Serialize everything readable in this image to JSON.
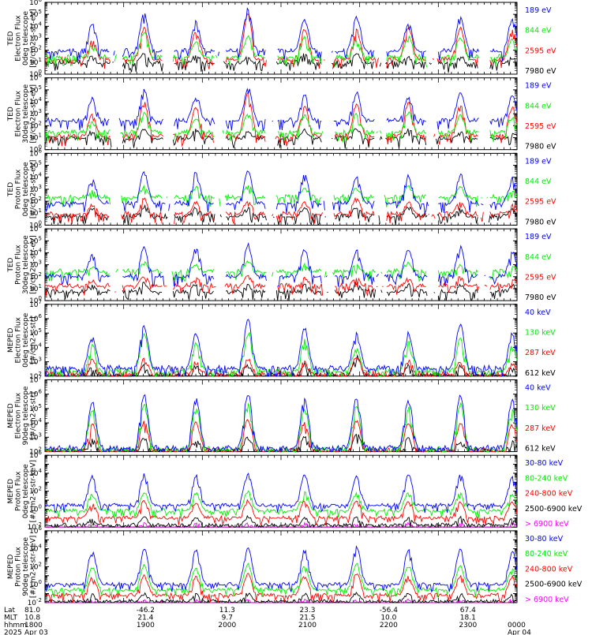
{
  "chart_data": [
    {
      "type": "line",
      "ylabel": [
        "TED",
        "Electron Flux",
        "0deg telescope",
        "[#/cm2-s-str-eV]"
      ],
      "y_log": true,
      "ylim_exp": [
        0,
        6
      ],
      "major_exp": [
        0,
        1,
        2,
        3,
        4,
        5,
        6
      ],
      "series": [
        {
          "name": "7980 eV",
          "color": "#000000",
          "base_exp": 0.9,
          "peaks_exp": [
            1.6,
            1.8,
            1.8,
            1.5,
            1.9,
            1.8,
            1.7,
            1.6,
            1.5
          ]
        },
        {
          "name": "2595 eV",
          "color": "#ff0000",
          "base_exp": 1.2,
          "peaks_exp": [
            3.0,
            4.0,
            3.7,
            5.2,
            4.0,
            3.8,
            4.0,
            4.0,
            3.8
          ]
        },
        {
          "name": "844 eV",
          "color": "#00ee00",
          "base_exp": 1.4,
          "peaks_exp": [
            2.5,
            3.6,
            2.8,
            3.3,
            3.2,
            3.0,
            3.3,
            3.2,
            3.0
          ]
        },
        {
          "name": "189 eV",
          "color": "#0000ff",
          "base_exp": 1.9,
          "peaks_exp": [
            4.3,
            5.2,
            4.5,
            5.6,
            4.8,
            5.0,
            4.4,
            4.9,
            4.7
          ]
        }
      ]
    },
    {
      "type": "line",
      "ylabel": [
        "TED",
        "Electron Flux",
        "30deg telescope",
        "[#/cm2-s-str-eV]"
      ],
      "y_log": true,
      "ylim_exp": [
        0,
        6
      ],
      "major_exp": [
        0,
        1,
        2,
        3,
        4,
        5,
        6
      ],
      "series": [
        {
          "name": "7980 eV",
          "color": "#000000",
          "base_exp": 0.9,
          "peaks_exp": [
            1.7,
            1.9,
            1.8,
            1.6,
            1.8,
            1.9,
            1.8,
            1.6,
            1.5
          ]
        },
        {
          "name": "2595 eV",
          "color": "#ff0000",
          "base_exp": 1.1,
          "peaks_exp": [
            3.0,
            4.1,
            3.6,
            4.8,
            3.8,
            3.9,
            4.0,
            3.9,
            3.7
          ]
        },
        {
          "name": "844 eV",
          "color": "#00ee00",
          "base_exp": 1.4,
          "peaks_exp": [
            2.4,
            3.4,
            2.7,
            3.1,
            3.0,
            3.1,
            3.2,
            3.0,
            2.9
          ]
        },
        {
          "name": "189 eV",
          "color": "#0000ff",
          "base_exp": 2.4,
          "peaks_exp": [
            4.4,
            5.1,
            4.6,
            5.3,
            4.7,
            4.9,
            4.5,
            4.8,
            4.6
          ]
        }
      ]
    },
    {
      "type": "line",
      "ylabel": [
        "TED",
        "Proton Flux",
        "0deg telescope",
        "[#/cm2-s-str-eV]"
      ],
      "y_log": true,
      "ylim_exp": [
        0,
        6
      ],
      "major_exp": [
        0,
        1,
        2,
        3,
        4,
        5,
        6
      ],
      "series": [
        {
          "name": "7980 eV",
          "color": "#000000",
          "base_exp": 0.7,
          "peaks_exp": [
            1.5,
            1.7,
            1.6,
            1.5,
            1.6,
            1.7,
            1.6,
            1.5,
            1.4
          ]
        },
        {
          "name": "2595 eV",
          "color": "#ff0000",
          "base_exp": 0.9,
          "peaks_exp": [
            1.8,
            2.3,
            2.0,
            2.2,
            2.1,
            2.4,
            2.0,
            2.1,
            1.9
          ]
        },
        {
          "name": "844 eV",
          "color": "#00ee00",
          "base_exp": 2.3,
          "peaks_exp": [
            3.0,
            3.4,
            3.3,
            3.5,
            3.3,
            3.2,
            3.4,
            3.3,
            3.1
          ]
        },
        {
          "name": "189 eV",
          "color": "#0000ff",
          "base_exp": 1.8,
          "peaks_exp": [
            4.0,
            4.5,
            4.6,
            4.7,
            4.4,
            4.2,
            4.3,
            4.4,
            4.1
          ]
        }
      ]
    },
    {
      "type": "line",
      "ylabel": [
        "TED",
        "Proton Flux",
        "30deg telescope",
        "[#/cm2-s-str-eV]"
      ],
      "y_log": true,
      "ylim_exp": [
        0,
        6
      ],
      "major_exp": [
        0,
        1,
        2,
        3,
        4,
        5,
        6
      ],
      "series": [
        {
          "name": "7980 eV",
          "color": "#000000",
          "base_exp": 0.7,
          "peaks_exp": [
            1.4,
            1.6,
            1.5,
            1.4,
            1.5,
            1.6,
            1.5,
            1.4,
            1.4
          ]
        },
        {
          "name": "2595 eV",
          "color": "#ff0000",
          "base_exp": 1.2,
          "peaks_exp": [
            1.8,
            2.1,
            2.0,
            2.2,
            2.0,
            2.1,
            2.0,
            2.1,
            1.9
          ]
        },
        {
          "name": "844 eV",
          "color": "#00ee00",
          "base_exp": 2.4,
          "peaks_exp": [
            3.0,
            3.3,
            3.2,
            3.4,
            3.2,
            3.1,
            3.3,
            3.2,
            3.0
          ]
        },
        {
          "name": "189 eV",
          "color": "#0000ff",
          "base_exp": 2.0,
          "peaks_exp": [
            4.0,
            4.6,
            4.5,
            4.8,
            4.4,
            4.3,
            4.4,
            4.6,
            4.2
          ]
        }
      ]
    },
    {
      "type": "line",
      "ylabel": [
        "MEPED",
        "Electron Flux",
        "0deg telescope",
        "[#/cm2-s-str]"
      ],
      "y_log": true,
      "ylim_exp": [
        2,
        7
      ],
      "major_exp": [
        2,
        3,
        4,
        5,
        6,
        7
      ],
      "series": [
        {
          "name": "612 keV",
          "color": "#000000",
          "base_exp": 2.0,
          "peaks_exp": [
            2.7,
            2.9,
            2.8,
            2.9,
            3.0,
            3.5,
            2.9,
            2.8,
            2.7
          ]
        },
        {
          "name": "287 keV",
          "color": "#ff0000",
          "base_exp": 2.1,
          "peaks_exp": [
            3.2,
            3.3,
            3.1,
            3.3,
            3.2,
            3.5,
            3.2,
            3.1,
            3.0
          ]
        },
        {
          "name": "130 keV",
          "color": "#00ee00",
          "base_exp": 2.3,
          "peaks_exp": [
            4.3,
            5.0,
            4.5,
            5.3,
            4.6,
            4.2,
            4.5,
            4.8,
            4.2
          ]
        },
        {
          "name": "40 keV",
          "color": "#0000ff",
          "base_exp": 2.5,
          "peaks_exp": [
            5.0,
            5.6,
            5.1,
            6.1,
            5.5,
            5.2,
            5.1,
            5.8,
            5.2
          ]
        }
      ]
    },
    {
      "type": "line",
      "ylabel": [
        "MEPED",
        "Electron Flux",
        "90deg telescope",
        "[#/cm2-s-str]"
      ],
      "y_log": true,
      "ylim_exp": [
        2,
        7
      ],
      "major_exp": [
        2,
        3,
        4,
        5,
        6,
        7
      ],
      "series": [
        {
          "name": "612 keV",
          "color": "#000000",
          "base_exp": 2.0,
          "peaks_exp": [
            2.9,
            3.0,
            3.0,
            3.1,
            3.1,
            3.5,
            3.0,
            2.9,
            2.8
          ]
        },
        {
          "name": "287 keV",
          "color": "#ff0000",
          "base_exp": 2.0,
          "peaks_exp": [
            4.1,
            4.3,
            4.2,
            4.4,
            4.2,
            4.3,
            4.2,
            4.1,
            4.0
          ]
        },
        {
          "name": "130 keV",
          "color": "#00ee00",
          "base_exp": 2.1,
          "peaks_exp": [
            5.0,
            5.4,
            5.2,
            5.5,
            5.2,
            5.3,
            5.2,
            5.4,
            5.0
          ]
        },
        {
          "name": "40 keV",
          "color": "#0000ff",
          "base_exp": 2.2,
          "peaks_exp": [
            5.6,
            6.1,
            5.9,
            6.2,
            5.8,
            5.9,
            5.8,
            6.0,
            5.7
          ]
        }
      ]
    },
    {
      "type": "line",
      "ylabel": [
        "MEPED",
        "Proton Flux",
        "0deg telescope",
        "[#/cm2-s-str-keV]"
      ],
      "y_log": true,
      "ylim_exp": [
        -2,
        6
      ],
      "major_exp": [
        -2,
        0,
        2,
        4,
        6
      ],
      "series": [
        {
          "name": "> 6900 keV",
          "color": "#ff00ff",
          "base_exp": -2.1,
          "peaks_exp": [
            -1.5,
            -1.5,
            -1.5,
            -1.5,
            -1.5,
            -1.5,
            -1.5,
            -1.5,
            -1.5
          ]
        },
        {
          "name": "2500-6900 keV",
          "color": "#000000",
          "base_exp": -1.8,
          "peaks_exp": [
            -1.0,
            -0.8,
            -0.9,
            -0.7,
            -0.9,
            -0.8,
            -0.9,
            -0.8,
            -1.0
          ]
        },
        {
          "name": "240-800 keV",
          "color": "#ff0000",
          "base_exp": -1.0,
          "peaks_exp": [
            0.8,
            1.0,
            0.9,
            1.1,
            1.0,
            1.2,
            1.0,
            1.0,
            0.9
          ]
        },
        {
          "name": "80-240 keV",
          "color": "#00ee00",
          "base_exp": -0.2,
          "peaks_exp": [
            1.8,
            2.0,
            1.9,
            2.1,
            2.0,
            1.9,
            2.0,
            2.0,
            1.8
          ]
        },
        {
          "name": "30-80 keV",
          "color": "#0000ff",
          "base_exp": 0.4,
          "peaks_exp": [
            3.8,
            4.0,
            3.9,
            4.1,
            3.9,
            3.8,
            4.0,
            4.0,
            3.7
          ]
        }
      ]
    },
    {
      "type": "line",
      "ylabel": [
        "MEPED",
        "Proton Flux",
        "90deg telescope",
        "[#/cm2-s-str-keV]"
      ],
      "y_log": true,
      "ylim_exp": [
        -2,
        6
      ],
      "major_exp": [
        -2,
        0,
        2,
        4,
        6
      ],
      "series": [
        {
          "name": "> 6900 keV",
          "color": "#ff00ff",
          "base_exp": -2.1,
          "peaks_exp": [
            -1.6,
            -1.6,
            -1.6,
            -1.6,
            -1.6,
            -1.6,
            -1.6,
            -1.6,
            -1.6
          ]
        },
        {
          "name": "2500-6900 keV",
          "color": "#000000",
          "base_exp": -1.9,
          "peaks_exp": [
            -1.0,
            -0.9,
            -0.9,
            -0.8,
            -0.9,
            -0.8,
            -0.9,
            -0.9,
            -1.0
          ]
        },
        {
          "name": "240-800 keV",
          "color": "#ff0000",
          "base_exp": -1.2,
          "peaks_exp": [
            0.9,
            1.2,
            1.0,
            1.3,
            1.1,
            1.4,
            1.1,
            1.1,
            1.0
          ]
        },
        {
          "name": "80-240 keV",
          "color": "#00ee00",
          "base_exp": -0.6,
          "peaks_exp": [
            2.0,
            2.3,
            2.1,
            2.4,
            2.2,
            2.5,
            2.2,
            2.2,
            2.0
          ]
        },
        {
          "name": "30-80 keV",
          "color": "#0000ff",
          "base_exp": 0.0,
          "peaks_exp": [
            3.9,
            4.2,
            4.0,
            4.3,
            4.0,
            4.4,
            4.0,
            4.1,
            3.8
          ]
        }
      ]
    }
  ],
  "x_axis": {
    "row_labels": [
      "Lat",
      "MLT",
      "hhmm",
      "2025"
    ],
    "columns": [
      {
        "t": 0.0,
        "values": [
          "81.0",
          "10.8",
          "1800",
          "Apr 03"
        ]
      },
      {
        "t": 0.213,
        "values": [
          "-46.2",
          "21.4",
          "1900",
          ""
        ]
      },
      {
        "t": 0.386,
        "values": [
          "11.3",
          "9.7",
          "2000",
          ""
        ]
      },
      {
        "t": 0.556,
        "values": [
          "23.3",
          "21.5",
          "2100",
          ""
        ]
      },
      {
        "t": 0.728,
        "values": [
          "-56.4",
          "10.0",
          "2200",
          ""
        ]
      },
      {
        "t": 0.896,
        "values": [
          "67.4",
          "18.1",
          "2300",
          ""
        ]
      },
      {
        "t": 1.0,
        "values": [
          "",
          "",
          "0000",
          "Apr 04"
        ]
      }
    ]
  },
  "pass_times": [
    0.1,
    0.21,
    0.32,
    0.43,
    0.55,
    0.66,
    0.77,
    0.88,
    0.99
  ]
}
